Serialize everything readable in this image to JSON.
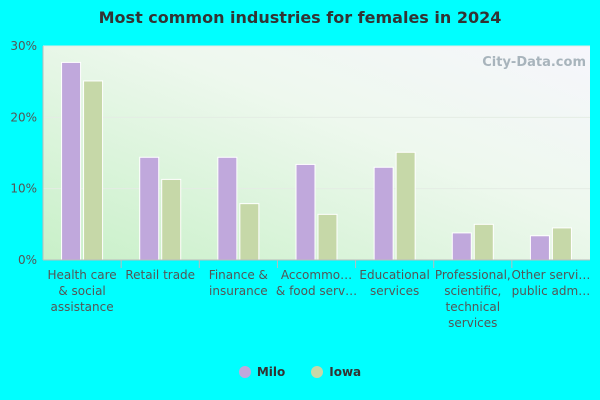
{
  "colors": {
    "milo": "#c0a8dc",
    "iowa": "#c6d8a8"
  },
  "watermark": "City-Data.com",
  "chart_data": {
    "type": "bar",
    "title": "Most common industries for females in 2024",
    "yticks": [
      "0%",
      "10%",
      "20%",
      "30%"
    ],
    "ylim": [
      0,
      30
    ],
    "grid": true,
    "legend_position": "bottom",
    "categories": [
      [
        "Health care",
        "& social",
        "assistance"
      ],
      [
        "Retail trade"
      ],
      [
        "Finance &",
        "insurance"
      ],
      [
        "Accommo…",
        "& food serv…"
      ],
      [
        "Educational",
        "services"
      ],
      [
        "Professional,",
        "scientific,",
        "technical",
        "services"
      ],
      [
        "Other servi…",
        "public adm…"
      ]
    ],
    "series": [
      {
        "name": "Milo",
        "values": [
          27.7,
          14.4,
          14.4,
          13.4,
          13.0,
          3.8,
          3.4
        ]
      },
      {
        "name": "Iowa",
        "values": [
          25.1,
          11.3,
          7.9,
          6.4,
          15.1,
          5.0,
          4.5
        ]
      }
    ]
  }
}
